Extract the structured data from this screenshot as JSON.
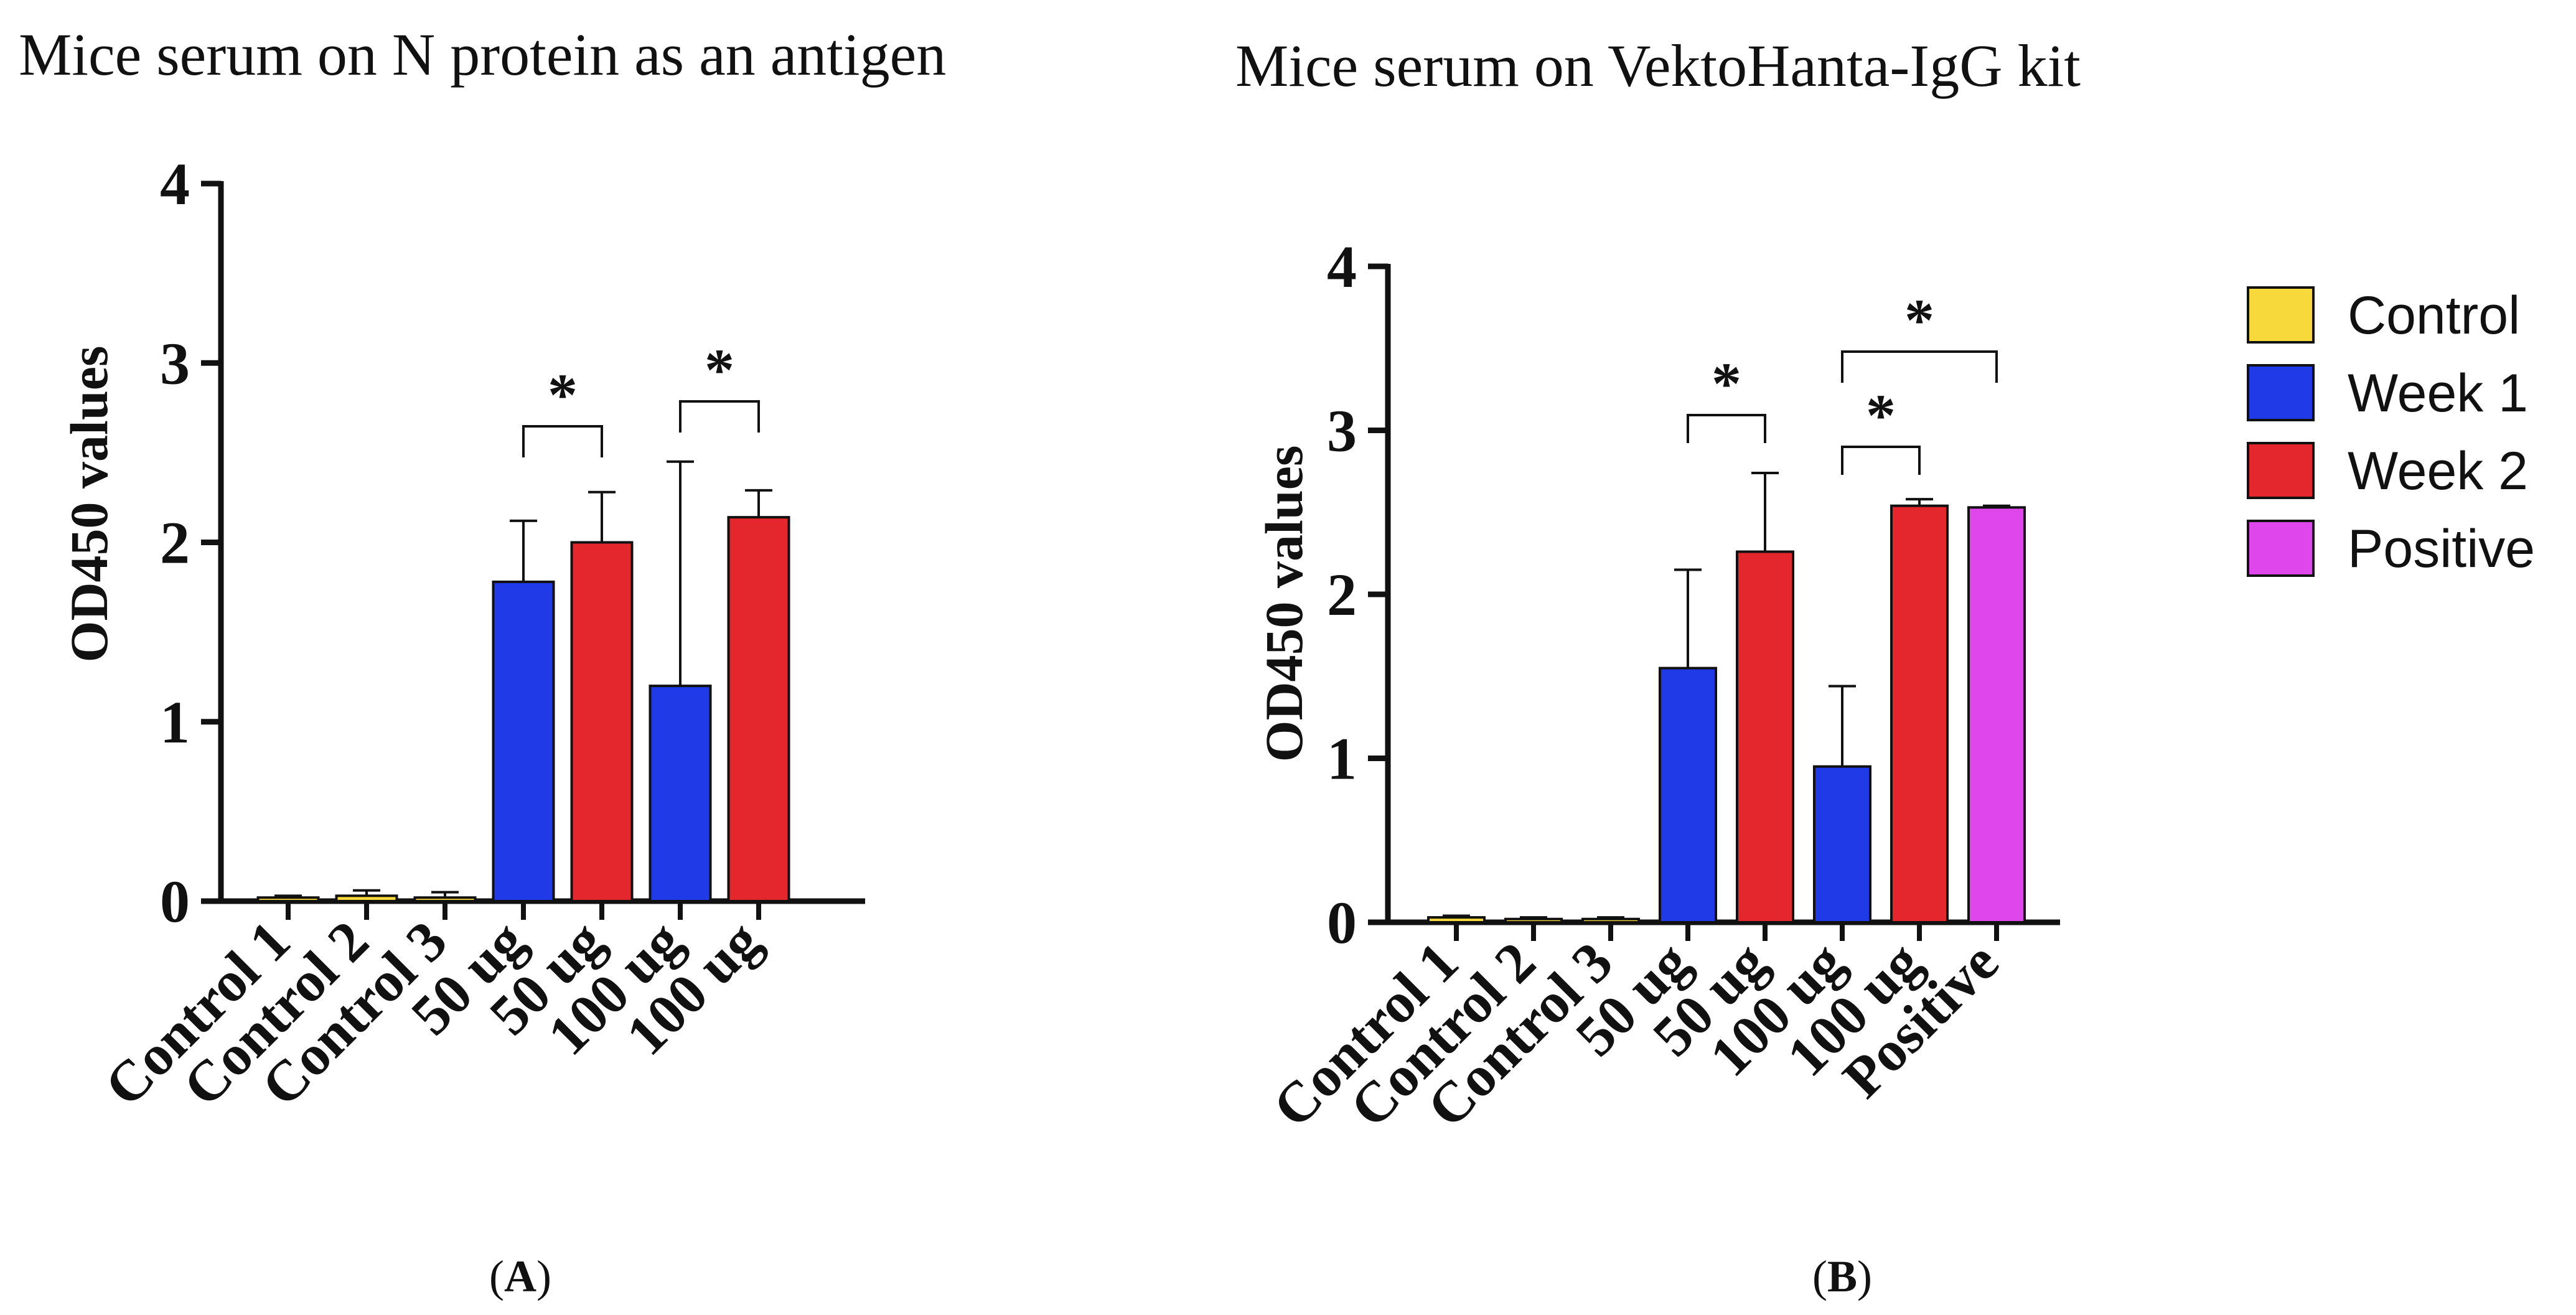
{
  "legend": {
    "items": [
      {
        "label": "Control",
        "color": "#f8d93c"
      },
      {
        "label": "Week 1",
        "color": "#1f3ae6"
      },
      {
        "label": "Week 2",
        "color": "#e3272d"
      },
      {
        "label": "Positive",
        "color": "#df46ec"
      }
    ]
  },
  "chart_data": [
    {
      "panel": "A",
      "type": "bar",
      "title": "Mice serum on N protein as an antigen",
      "ylabel": "OD450 values",
      "xlabel": "",
      "ylim": [
        0,
        4
      ],
      "yticks": [
        "0",
        "1",
        "2",
        "3",
        "4"
      ],
      "categories": [
        "Control 1",
        "Control 2",
        "Control 3",
        "50 ug",
        "50 ug",
        "100 ug",
        "100 ug"
      ],
      "values": [
        0.02,
        0.03,
        0.02,
        1.78,
        2.0,
        1.2,
        2.14
      ],
      "errors": [
        0.01,
        0.03,
        0.03,
        0.34,
        0.28,
        1.25,
        0.15
      ],
      "groups": [
        "Control",
        "Control",
        "Control",
        "Week 1",
        "Week 2",
        "Week 1",
        "Week 2"
      ],
      "significance": [
        {
          "from": 3,
          "to": 4,
          "label": "*"
        },
        {
          "from": 5,
          "to": 6,
          "label": "*"
        }
      ],
      "panel_label": "A"
    },
    {
      "panel": "B",
      "type": "bar",
      "title": "Mice serum on VektoHanta-IgG kit",
      "ylabel": "OD450 values",
      "xlabel": "",
      "ylim": [
        0,
        4
      ],
      "yticks": [
        "0",
        "1",
        "2",
        "3",
        "4"
      ],
      "categories": [
        "Control 1",
        "Control 2",
        "Control 3",
        "50 ug",
        "50 ug",
        "100 ug",
        "100 ug",
        "Positive"
      ],
      "values": [
        0.03,
        0.02,
        0.02,
        1.55,
        2.26,
        0.95,
        2.54,
        2.53
      ],
      "errors": [
        0.01,
        0.01,
        0.01,
        0.6,
        0.48,
        0.49,
        0.04,
        0.01
      ],
      "groups": [
        "Control",
        "Control",
        "Control",
        "Week 1",
        "Week 2",
        "Week 1",
        "Week 2",
        "Positive"
      ],
      "significance": [
        {
          "from": 3,
          "to": 4,
          "label": "*"
        },
        {
          "from": 5,
          "to": 6,
          "label": "*"
        },
        {
          "from": 5,
          "to": 7,
          "label": "*"
        }
      ],
      "panel_label": "B"
    }
  ]
}
